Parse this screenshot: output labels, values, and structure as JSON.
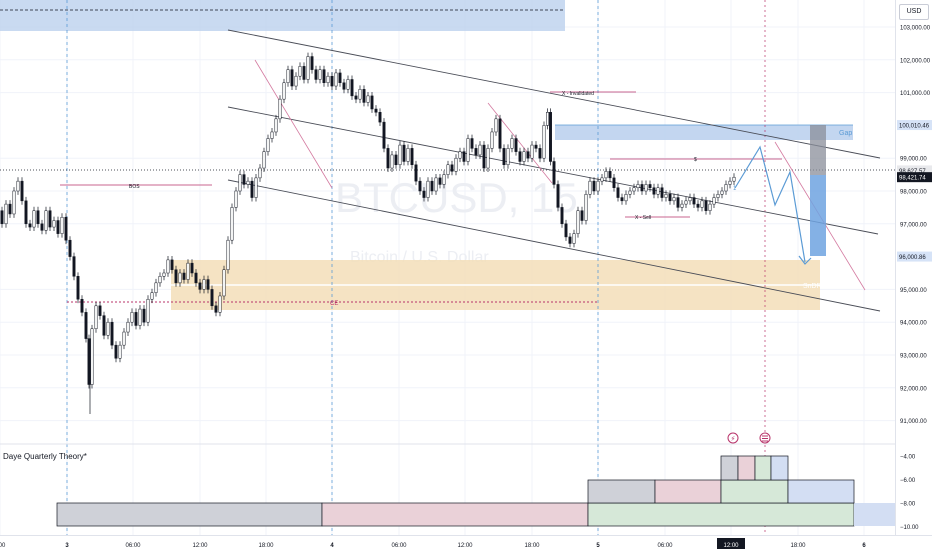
{
  "symbol_watermark": "BTCUSD, 15",
  "symbol_subtitle": "Bitcoin / U.S. Dollar",
  "currency": "USD",
  "indicator_name": "Daye Quarterly Theory*",
  "price_axis": {
    "ticks": [
      {
        "value": 103000,
        "label": "103,000.00"
      },
      {
        "value": 102000,
        "label": "102,000.00"
      },
      {
        "value": 101000,
        "label": "101,000.00"
      },
      {
        "value": 99000,
        "label": "99,000.00"
      },
      {
        "value": 98000,
        "label": "98,000.00"
      },
      {
        "value": 97000,
        "label": "97,000.00"
      },
      {
        "value": 95000,
        "label": "95,000.00"
      },
      {
        "value": 94000,
        "label": "94,000.00"
      },
      {
        "value": 93000,
        "label": "93,000.00"
      },
      {
        "value": 92000,
        "label": "92,000.00"
      },
      {
        "value": 91000,
        "label": "91,000.00"
      }
    ],
    "badges": [
      {
        "value": 100010.46,
        "label": "100,010.46",
        "bg": "#d6e3f7",
        "fg": "#131722"
      },
      {
        "value": 98627.57,
        "label": "98,627.57",
        "bg": "#e8e9ec",
        "fg": "#131722"
      },
      {
        "value": 98421.74,
        "label": "98,421.74",
        "bg": "#131722",
        "fg": "#ffffff"
      },
      {
        "value": 96000.86,
        "label": "96,000.86",
        "bg": "#d6e3f7",
        "fg": "#131722"
      }
    ]
  },
  "indicator_axis": {
    "ticks": [
      {
        "value": -4,
        "label": "−4.00"
      },
      {
        "value": -6,
        "label": "−6.00"
      },
      {
        "value": -8,
        "label": "−8.00"
      },
      {
        "value": -10,
        "label": "−10.00"
      }
    ]
  },
  "time_axis": {
    "labels": [
      "00",
      "3",
      "06:00",
      "12:00",
      "18:00",
      "4",
      "06:00",
      "12:00",
      "18:00",
      "5",
      "06:00",
      "12:00",
      "18:00",
      "6"
    ],
    "bold": [
      false,
      true,
      false,
      false,
      false,
      true,
      false,
      false,
      false,
      true,
      false,
      false,
      false,
      true
    ],
    "highlight": "12:00"
  },
  "annotations": {
    "bos": "BOS",
    "ce": "CE",
    "invalidated": "X - Invalidated",
    "dollar": "$",
    "sell": "X - Sell",
    "gap": "Gap",
    "snr": "SnDR",
    "tag_1": "1",
    "tag_2": "1"
  },
  "colors": {
    "bull": "#ffffff",
    "bear": "#131722",
    "gap_zone": "#bcd1ee",
    "supply_zone": "#f3deb8",
    "top_zone": "#bcd1ee",
    "channel": "#4a4d57",
    "annotation": "#b8336a",
    "projection": "#5b9bd5",
    "forecast_fill": "#6fa3e0"
  },
  "icons": [
    "flag-usa-icon",
    "news-event-icon"
  ]
}
